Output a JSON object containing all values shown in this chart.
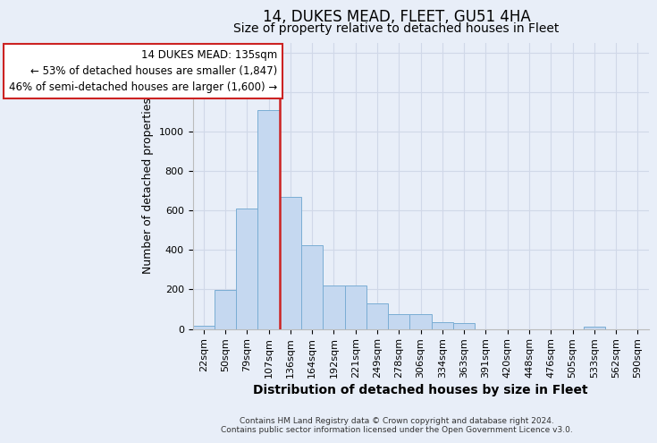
{
  "title": "14, DUKES MEAD, FLEET, GU51 4HA",
  "subtitle": "Size of property relative to detached houses in Fleet",
  "xlabel": "Distribution of detached houses by size in Fleet",
  "ylabel": "Number of detached properties",
  "footer_line1": "Contains HM Land Registry data © Crown copyright and database right 2024.",
  "footer_line2": "Contains public sector information licensed under the Open Government Licence v3.0.",
  "bin_labels": [
    "22sqm",
    "50sqm",
    "79sqm",
    "107sqm",
    "136sqm",
    "164sqm",
    "192sqm",
    "221sqm",
    "249sqm",
    "278sqm",
    "306sqm",
    "334sqm",
    "363sqm",
    "391sqm",
    "420sqm",
    "448sqm",
    "476sqm",
    "505sqm",
    "533sqm",
    "562sqm",
    "590sqm"
  ],
  "bar_values": [
    15,
    195,
    610,
    1110,
    670,
    425,
    220,
    220,
    130,
    75,
    75,
    35,
    30,
    0,
    0,
    0,
    0,
    0,
    10,
    0,
    0
  ],
  "bar_color": "#c5d8f0",
  "bar_edge_color": "#7aadd4",
  "vline_x": 3.5,
  "vline_color": "#cc2222",
  "annotation_line1": "14 DUKES MEAD: 135sqm",
  "annotation_line2": "← 53% of detached houses are smaller (1,847)",
  "annotation_line3": "46% of semi-detached houses are larger (1,600) →",
  "annotation_box_color": "#ffffff",
  "annotation_box_edge_color": "#cc2222",
  "ylim": [
    0,
    1450
  ],
  "yticks": [
    0,
    200,
    400,
    600,
    800,
    1000,
    1200,
    1400
  ],
  "background_color": "#e8eef8",
  "grid_color": "#d0d8e8",
  "title_fontsize": 12,
  "subtitle_fontsize": 10,
  "xlabel_fontsize": 10,
  "ylabel_fontsize": 9,
  "tick_fontsize": 8,
  "annotation_fontsize": 8.5,
  "footer_fontsize": 6.5
}
